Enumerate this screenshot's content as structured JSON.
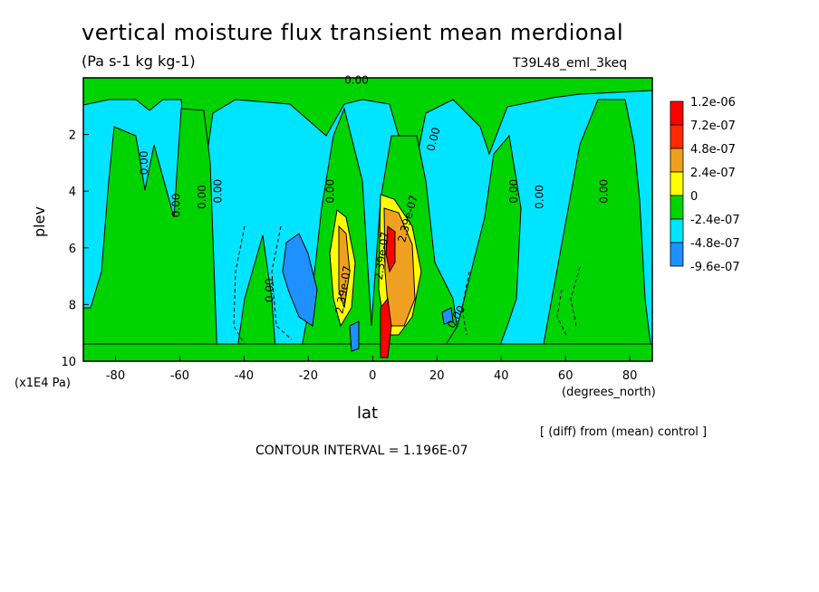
{
  "chart_data": {
    "type": "contour",
    "title": "vertical moisture flux transient mean merdional",
    "subtitle": "(Pa s-1 kg kg-1)",
    "run_id": "T39L48_eml_3keq",
    "xlabel": "lat",
    "x_unit": "(degrees_north)",
    "ylabel": "plev",
    "y_unit": "(x1E4 Pa)",
    "xlim": [
      -90,
      87
    ],
    "ylim": [
      0,
      10
    ],
    "y_inverted": true,
    "x_ticks": [
      -80,
      -60,
      -40,
      -20,
      0,
      20,
      40,
      60,
      80
    ],
    "y_ticks": [
      2,
      4,
      6,
      8,
      10
    ],
    "x_tick_labels": [
      "-80",
      "-60",
      "-40",
      "-20",
      "0",
      "20",
      "40",
      "60",
      "80"
    ],
    "y_tick_labels": [
      "2",
      "4",
      "6",
      "8",
      "10"
    ],
    "legend": {
      "placement": "right",
      "labels": [
        "1.2e-06",
        "7.2e-07",
        "4.8e-07",
        "2.4e-07",
        "0",
        "-2.4e-07",
        "-4.8e-07",
        "-9.6e-07"
      ],
      "colors": [
        "#ff0000",
        "#ff2a00",
        "#f0a020",
        "#ffff00",
        "#00d400",
        "#00e5ff",
        "#1e90ff",
        "#0050ff"
      ]
    },
    "background_color": "#00e5ff",
    "contour_labels": [
      {
        "text": "0.00",
        "lat": -5,
        "plev": 0.2,
        "rot": 0
      },
      {
        "text": "0.00",
        "lat": -70,
        "plev": 3.0,
        "rot": -90
      },
      {
        "text": "0.00",
        "lat": -60,
        "plev": 4.5,
        "rot": -90
      },
      {
        "text": "0.00",
        "lat": -52,
        "plev": 4.2,
        "rot": -90
      },
      {
        "text": "0.00",
        "lat": -47,
        "plev": 4.0,
        "rot": -90
      },
      {
        "text": "0.00",
        "lat": -12,
        "plev": 4.0,
        "rot": -90
      },
      {
        "text": "0.00",
        "lat": 20,
        "plev": 2.2,
        "rot": -75
      },
      {
        "text": "0.00",
        "lat": 45,
        "plev": 4.0,
        "rot": -90
      },
      {
        "text": "0.00",
        "lat": 53,
        "plev": 4.2,
        "rot": -90
      },
      {
        "text": "0.00",
        "lat": 73,
        "plev": 4.0,
        "rot": -90
      },
      {
        "text": "0.00",
        "lat": -31,
        "plev": 7.5,
        "rot": -90
      },
      {
        "text": "0.00",
        "lat": 27,
        "plev": 8.5,
        "rot": -60
      },
      {
        "text": "2.39e-07",
        "lat": -8,
        "plev": 7.5,
        "rot": -80
      },
      {
        "text": "2.39e-07",
        "lat": 4,
        "plev": 6.3,
        "rot": -82
      },
      {
        "text": "2.39e-07",
        "lat": 12,
        "plev": 5.0,
        "rot": -75
      }
    ],
    "contour_interval_text": "CONTOUR INTERVAL = 1.196E-07",
    "diff_note": "[ (diff) from (mean) control ]"
  }
}
